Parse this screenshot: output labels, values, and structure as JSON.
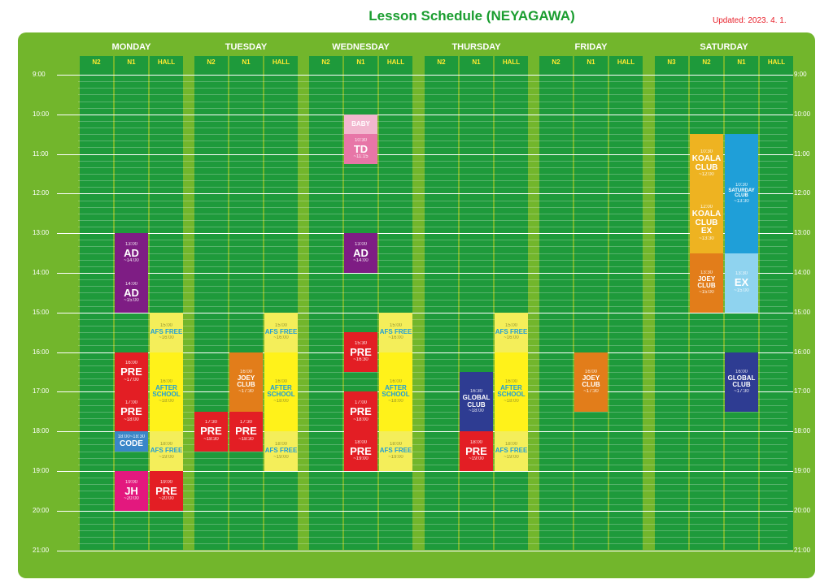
{
  "title": "Lesson Schedule (NEYAGAWA)",
  "updated": "Updated: 2023. 4. 1.",
  "colors": {
    "board": "#72b62c",
    "column": "#1e9a3b",
    "header_text": "#ffe930"
  },
  "days": [
    {
      "name": "MONDAY",
      "columns": [
        "N2",
        "N1",
        "HALL"
      ]
    },
    {
      "name": "TUESDAY",
      "columns": [
        "N2",
        "N1",
        "HALL"
      ]
    },
    {
      "name": "WEDNESDAY",
      "columns": [
        "N2",
        "N1",
        "HALL"
      ]
    },
    {
      "name": "THURSDAY",
      "columns": [
        "N2",
        "N1",
        "HALL"
      ]
    },
    {
      "name": "FRIDAY",
      "columns": [
        "N2",
        "N1",
        "HALL"
      ]
    },
    {
      "name": "SATURDAY",
      "columns": [
        "N3",
        "N2",
        "N1",
        "HALL"
      ]
    }
  ],
  "hours": [
    "9:00",
    "10:00",
    "11:00",
    "12:00",
    "13:00",
    "14:00",
    "15:00",
    "16:00",
    "17:00",
    "18:00",
    "19:00",
    "20:00",
    "21:00"
  ],
  "blocks": [
    {
      "col": 1,
      "start": 13.0,
      "end": 14.0,
      "color": "#7e1d84",
      "start_label": "13:00",
      "name": "AD",
      "end_label": "~14:00",
      "size": "big"
    },
    {
      "col": 1,
      "start": 14.0,
      "end": 15.0,
      "color": "#7e1d84",
      "start_label": "14:00",
      "name": "AD",
      "end_label": "~15:00",
      "size": "big"
    },
    {
      "col": 1,
      "start": 16.0,
      "end": 17.0,
      "color": "#e31e24",
      "start_label": "16:00",
      "name": "PRE",
      "end_label": "~17:00",
      "size": "big"
    },
    {
      "col": 1,
      "start": 17.0,
      "end": 18.0,
      "color": "#e31e24",
      "start_label": "17:00",
      "name": "PRE",
      "end_label": "~18:00",
      "size": "big"
    },
    {
      "col": 1,
      "start": 18.0,
      "end": 18.5,
      "color": "#3a86c8",
      "start_label": "18:00~18:30",
      "name": "CODE",
      "end_label": "",
      "size": "mid"
    },
    {
      "col": 1,
      "start": 19.0,
      "end": 20.0,
      "color": "#e3187e",
      "start_label": "19:00",
      "name": "JH",
      "end_label": "~20:00",
      "size": "big"
    },
    {
      "col": 2,
      "start": 15.0,
      "end": 16.0,
      "color": "#f4ee5a",
      "start_label": "15:00",
      "name": "AFS FREE",
      "end_label": "~16:00",
      "size": "sm",
      "text_color": "#1f9fd8"
    },
    {
      "col": 2,
      "start": 16.0,
      "end": 18.0,
      "color": "#fff21a",
      "start_label": "16:00",
      "name": "AFTER SCHOOL",
      "end_label": "~18:00",
      "size": "sm",
      "text_color": "#1f9fd8"
    },
    {
      "col": 2,
      "start": 18.0,
      "end": 19.0,
      "color": "#f4ee5a",
      "start_label": "18:00",
      "name": "AFS FREE",
      "end_label": "~19:00",
      "size": "sm",
      "text_color": "#1f9fd8"
    },
    {
      "col": 2,
      "start": 19.0,
      "end": 20.0,
      "color": "#e31e24",
      "start_label": "19:00",
      "name": "PRE",
      "end_label": "~20:00",
      "size": "big"
    },
    {
      "col": 3,
      "start": 17.5,
      "end": 18.5,
      "color": "#e31e24",
      "start_label": "17:30",
      "name": "PRE",
      "end_label": "~18:30",
      "size": "big"
    },
    {
      "col": 4,
      "start": 16.0,
      "end": 17.5,
      "color": "#e27d1a",
      "start_label": "16:00",
      "name": "JOEY CLUB",
      "end_label": "~17:30",
      "size": "sm"
    },
    {
      "col": 4,
      "start": 17.5,
      "end": 18.5,
      "color": "#e31e24",
      "start_label": "17:30",
      "name": "PRE",
      "end_label": "~18:30",
      "size": "big"
    },
    {
      "col": 5,
      "start": 15.0,
      "end": 16.0,
      "color": "#f4ee5a",
      "start_label": "15:00",
      "name": "AFS FREE",
      "end_label": "~16:00",
      "size": "sm",
      "text_color": "#1f9fd8"
    },
    {
      "col": 5,
      "start": 16.0,
      "end": 18.0,
      "color": "#fff21a",
      "start_label": "16:00",
      "name": "AFTER SCHOOL",
      "end_label": "~18:00",
      "size": "sm",
      "text_color": "#1f9fd8"
    },
    {
      "col": 5,
      "start": 18.0,
      "end": 19.0,
      "color": "#f4ee5a",
      "start_label": "18:00",
      "name": "AFS FREE",
      "end_label": "~19:00",
      "size": "sm",
      "text_color": "#1f9fd8"
    },
    {
      "col": 7,
      "start": 10.0,
      "end": 10.5,
      "color": "#f2b7cf",
      "start_label": "",
      "name": "BABY",
      "end_label": "",
      "size": "sm"
    },
    {
      "col": 7,
      "start": 10.5,
      "end": 11.25,
      "color": "#e776a7",
      "start_label": "10:30",
      "name": "TD",
      "end_label": "~11:15",
      "size": "big"
    },
    {
      "col": 7,
      "start": 13.0,
      "end": 14.0,
      "color": "#7e1d84",
      "start_label": "13:00",
      "name": "AD",
      "end_label": "~14:00",
      "size": "big"
    },
    {
      "col": 7,
      "start": 15.5,
      "end": 16.5,
      "color": "#e31e24",
      "start_label": "15:30",
      "name": "PRE",
      "end_label": "~16:30",
      "size": "big"
    },
    {
      "col": 7,
      "start": 17.0,
      "end": 18.0,
      "color": "#e31e24",
      "start_label": "17:00",
      "name": "PRE",
      "end_label": "~18:00",
      "size": "big"
    },
    {
      "col": 7,
      "start": 18.0,
      "end": 19.0,
      "color": "#e31e24",
      "start_label": "18:00",
      "name": "PRE",
      "end_label": "~19:00",
      "size": "big"
    },
    {
      "col": 8,
      "start": 15.0,
      "end": 16.0,
      "color": "#f4ee5a",
      "start_label": "15:00",
      "name": "AFS FREE",
      "end_label": "~16:00",
      "size": "sm",
      "text_color": "#1f9fd8"
    },
    {
      "col": 8,
      "start": 16.0,
      "end": 18.0,
      "color": "#fff21a",
      "start_label": "16:00",
      "name": "AFTER SCHOOL",
      "end_label": "~18:00",
      "size": "sm",
      "text_color": "#1f9fd8"
    },
    {
      "col": 8,
      "start": 18.0,
      "end": 19.0,
      "color": "#f4ee5a",
      "start_label": "18:00",
      "name": "AFS FREE",
      "end_label": "~19:00",
      "size": "sm",
      "text_color": "#1f9fd8"
    },
    {
      "col": 10,
      "start": 16.5,
      "end": 18.0,
      "color": "#2e3c92",
      "start_label": "16:30",
      "name": "GLOBAL CLUB",
      "end_label": "~18:00",
      "size": "sm"
    },
    {
      "col": 10,
      "start": 18.0,
      "end": 19.0,
      "color": "#e31e24",
      "start_label": "18:00",
      "name": "PRE",
      "end_label": "~19:00",
      "size": "big"
    },
    {
      "col": 11,
      "start": 15.0,
      "end": 16.0,
      "color": "#f4ee5a",
      "start_label": "15:00",
      "name": "AFS FREE",
      "end_label": "~16:00",
      "size": "sm",
      "text_color": "#1f9fd8"
    },
    {
      "col": 11,
      "start": 16.0,
      "end": 18.0,
      "color": "#fff21a",
      "start_label": "16:00",
      "name": "AFTER SCHOOL",
      "end_label": "~18:00",
      "size": "sm",
      "text_color": "#1f9fd8"
    },
    {
      "col": 11,
      "start": 18.0,
      "end": 19.0,
      "color": "#f4ee5a",
      "start_label": "18:00",
      "name": "AFS FREE",
      "end_label": "~19:00",
      "size": "sm",
      "text_color": "#1f9fd8"
    },
    {
      "col": 13,
      "start": 16.0,
      "end": 17.5,
      "color": "#e27d1a",
      "start_label": "16:00",
      "name": "JOEY CLUB",
      "end_label": "~17:30",
      "size": "sm"
    },
    {
      "col": 16,
      "start": 10.5,
      "end": 12.0,
      "color": "#eeb321",
      "start_label": "10:30",
      "name": "KOALA CLUB",
      "end_label": "~12:00",
      "size": "mid"
    },
    {
      "col": 16,
      "start": 12.0,
      "end": 13.5,
      "color": "#eeb321",
      "start_label": "12:00",
      "name": "KOALA CLUB EX",
      "end_label": "~13:30",
      "size": "mid"
    },
    {
      "col": 16,
      "start": 13.5,
      "end": 15.0,
      "color": "#e27d1a",
      "start_label": "13:30",
      "name": "JOEY CLUB",
      "end_label": "~15:00",
      "size": "sm"
    },
    {
      "col": 17,
      "start": 10.5,
      "end": 13.5,
      "color": "#1f9fd8",
      "start_label": "10:30",
      "name": "SATURDAY CLUB",
      "end_label": "~13:30",
      "size": "xs"
    },
    {
      "col": 17,
      "start": 13.5,
      "end": 15.0,
      "color": "#8fd3ef",
      "start_label": "13:30",
      "name": "EX",
      "end_label": "~15:00",
      "size": "big"
    },
    {
      "col": 17,
      "start": 16.0,
      "end": 17.5,
      "color": "#2e3c92",
      "start_label": "16:00",
      "name": "GLOBAL CLUB",
      "end_label": "~17:30",
      "size": "sm"
    }
  ]
}
